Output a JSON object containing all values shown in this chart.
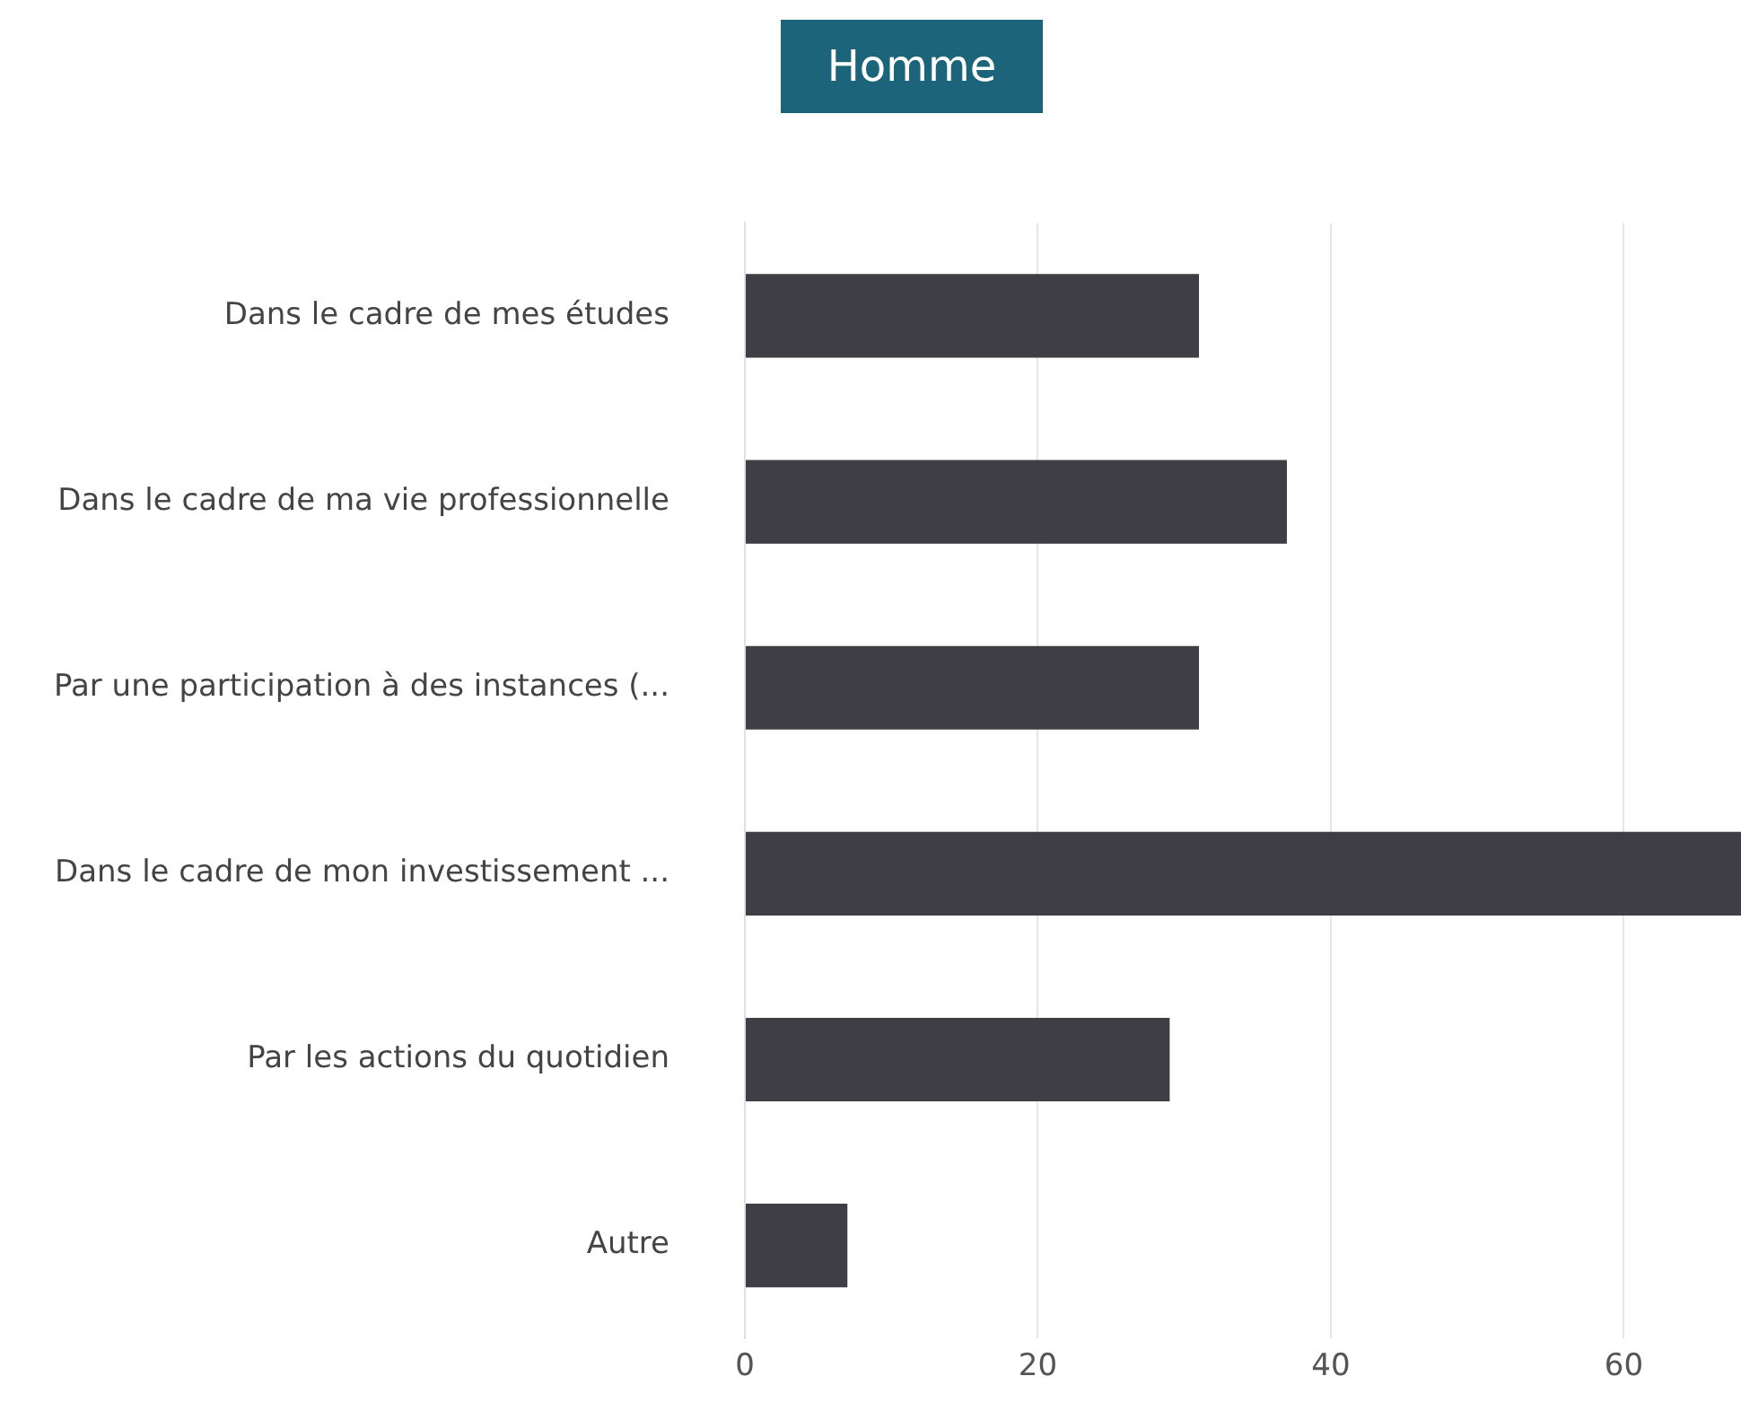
{
  "chart_data": {
    "type": "bar",
    "orientation": "horizontal",
    "title": "Homme",
    "categories": [
      "Dans le cadre de mes études",
      "Dans le cadre de ma vie professionnelle",
      "Par une participation à des instances (...",
      "Dans le cadre de mon investissement ...",
      "Par les actions du quotidien",
      "Autre"
    ],
    "values": [
      31,
      37,
      31,
      68,
      29,
      7
    ],
    "color": "#3f3e45",
    "xlim": [
      0,
      68
    ],
    "xticks": [
      0,
      20,
      40,
      60
    ],
    "grid": "x"
  }
}
